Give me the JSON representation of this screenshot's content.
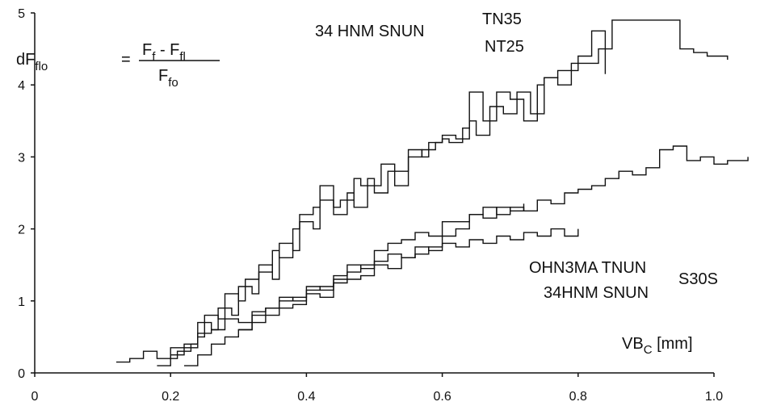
{
  "chart_data": {
    "type": "line",
    "xlim": [
      0,
      1.0
    ],
    "ylim": [
      0,
      5
    ],
    "x_ticks": [
      "0",
      "0.2",
      "0.4",
      "0.6",
      "0.8",
      "1.0"
    ],
    "y_ticks": [
      "0",
      "1",
      "2",
      "3",
      "4",
      "5"
    ],
    "grid": false,
    "xlabel": {
      "main": "VB",
      "sub": "C",
      "unit": " [mm]"
    },
    "formula": {
      "lhs_main": "dF",
      "lhs_sub": "flo",
      "equals": "=",
      "num_a": "F",
      "num_a_sub": "f",
      "minus": " - ",
      "num_b": "F",
      "num_b_sub": "fl",
      "den": "F",
      "den_sub": "fo"
    },
    "annotations": [
      {
        "text": "34 HNM SNUN",
        "sup": [
          "TN35",
          "NT25"
        ]
      },
      {
        "lines": [
          "OHN3MA TNUN",
          "34HNM SNUN"
        ],
        "sup": "S30S"
      }
    ],
    "series": [
      {
        "group": "upper",
        "points": [
          [
            0.18,
            0.1
          ],
          [
            0.2,
            0.25
          ],
          [
            0.22,
            0.35
          ],
          [
            0.24,
            0.5
          ],
          [
            0.25,
            0.8
          ],
          [
            0.27,
            0.75
          ],
          [
            0.28,
            1.1
          ],
          [
            0.3,
            1.0
          ],
          [
            0.31,
            1.3
          ],
          [
            0.33,
            1.4
          ],
          [
            0.35,
            1.7
          ],
          [
            0.36,
            1.6
          ],
          [
            0.38,
            2.0
          ],
          [
            0.39,
            2.2
          ],
          [
            0.41,
            2.3
          ],
          [
            0.42,
            2.6
          ],
          [
            0.44,
            2.3
          ],
          [
            0.45,
            2.4
          ],
          [
            0.47,
            2.7
          ],
          [
            0.48,
            2.6
          ],
          [
            0.5,
            2.6
          ],
          [
            0.51,
            2.9
          ],
          [
            0.53,
            2.8
          ],
          [
            0.55,
            3.1
          ],
          [
            0.57,
            3.0
          ],
          [
            0.58,
            3.2
          ],
          [
            0.6,
            3.25
          ],
          [
            0.61,
            3.2
          ],
          [
            0.63,
            3.4
          ],
          [
            0.64,
            3.9
          ],
          [
            0.66,
            3.5
          ],
          [
            0.68,
            3.9
          ],
          [
            0.7,
            3.8
          ],
          [
            0.72,
            3.5
          ],
          [
            0.74,
            4.0
          ],
          [
            0.75,
            4.1
          ],
          [
            0.77,
            4.2
          ],
          [
            0.79,
            4.3
          ],
          [
            0.81,
            4.3
          ],
          [
            0.83,
            4.5
          ],
          [
            0.85,
            4.9
          ],
          [
            0.87,
            4.9
          ],
          [
            0.89,
            4.9
          ],
          [
            0.91,
            4.9
          ],
          [
            0.93,
            4.9
          ],
          [
            0.95,
            4.5
          ],
          [
            0.97,
            4.45
          ],
          [
            0.99,
            4.4
          ],
          [
            1.02,
            4.35
          ]
        ]
      },
      {
        "group": "upper",
        "points": [
          [
            0.2,
            0.2
          ],
          [
            0.21,
            0.3
          ],
          [
            0.23,
            0.4
          ],
          [
            0.24,
            0.7
          ],
          [
            0.26,
            0.6
          ],
          [
            0.27,
            0.9
          ],
          [
            0.29,
            0.8
          ],
          [
            0.3,
            1.2
          ],
          [
            0.32,
            1.1
          ],
          [
            0.33,
            1.5
          ],
          [
            0.35,
            1.3
          ],
          [
            0.36,
            1.8
          ],
          [
            0.38,
            1.7
          ],
          [
            0.39,
            2.1
          ],
          [
            0.41,
            2.0
          ],
          [
            0.42,
            2.4
          ],
          [
            0.44,
            2.2
          ],
          [
            0.46,
            2.5
          ],
          [
            0.47,
            2.3
          ],
          [
            0.49,
            2.7
          ],
          [
            0.5,
            2.5
          ],
          [
            0.52,
            2.8
          ],
          [
            0.53,
            2.6
          ],
          [
            0.55,
            3.0
          ],
          [
            0.57,
            3.1
          ],
          [
            0.59,
            3.2
          ],
          [
            0.6,
            3.3
          ],
          [
            0.62,
            3.25
          ],
          [
            0.64,
            3.5
          ],
          [
            0.65,
            3.3
          ],
          [
            0.67,
            3.7
          ],
          [
            0.69,
            3.6
          ],
          [
            0.71,
            3.9
          ],
          [
            0.73,
            3.6
          ],
          [
            0.75,
            4.1
          ],
          [
            0.77,
            4.0
          ],
          [
            0.79,
            4.2
          ],
          [
            0.8,
            4.4
          ],
          [
            0.82,
            4.75
          ],
          [
            0.84,
            4.15
          ]
        ]
      },
      {
        "group": "lower",
        "points": [
          [
            0.12,
            0.15
          ],
          [
            0.14,
            0.2
          ],
          [
            0.16,
            0.3
          ],
          [
            0.18,
            0.2
          ],
          [
            0.2,
            0.35
          ],
          [
            0.22,
            0.4
          ],
          [
            0.24,
            0.55
          ],
          [
            0.26,
            0.6
          ],
          [
            0.28,
            0.75
          ],
          [
            0.3,
            0.7
          ],
          [
            0.32,
            0.85
          ],
          [
            0.34,
            0.9
          ],
          [
            0.36,
            1.0
          ],
          [
            0.38,
            1.05
          ],
          [
            0.4,
            1.15
          ],
          [
            0.42,
            1.2
          ],
          [
            0.44,
            1.3
          ],
          [
            0.46,
            1.4
          ],
          [
            0.48,
            1.5
          ],
          [
            0.5,
            1.55
          ],
          [
            0.52,
            1.65
          ],
          [
            0.54,
            1.6
          ],
          [
            0.56,
            1.75
          ],
          [
            0.58,
            1.7
          ],
          [
            0.6,
            1.8
          ],
          [
            0.62,
            1.75
          ],
          [
            0.64,
            1.85
          ],
          [
            0.66,
            1.8
          ],
          [
            0.68,
            1.9
          ],
          [
            0.7,
            1.85
          ],
          [
            0.72,
            1.95
          ],
          [
            0.74,
            1.9
          ],
          [
            0.76,
            2.0
          ],
          [
            0.78,
            1.9
          ],
          [
            0.8,
            2.0
          ]
        ]
      },
      {
        "group": "lower",
        "points": [
          [
            0.22,
            0.1
          ],
          [
            0.24,
            0.25
          ],
          [
            0.26,
            0.4
          ],
          [
            0.28,
            0.5
          ],
          [
            0.3,
            0.6
          ],
          [
            0.32,
            0.8
          ],
          [
            0.34,
            0.9
          ],
          [
            0.36,
            1.05
          ],
          [
            0.38,
            1.0
          ],
          [
            0.4,
            1.2
          ],
          [
            0.42,
            1.15
          ],
          [
            0.44,
            1.35
          ],
          [
            0.46,
            1.5
          ],
          [
            0.48,
            1.45
          ],
          [
            0.5,
            1.7
          ],
          [
            0.52,
            1.8
          ],
          [
            0.54,
            1.85
          ],
          [
            0.56,
            1.95
          ],
          [
            0.58,
            1.9
          ],
          [
            0.6,
            2.1
          ],
          [
            0.62,
            2.1
          ],
          [
            0.64,
            2.2
          ],
          [
            0.66,
            2.3
          ],
          [
            0.68,
            2.2
          ],
          [
            0.7,
            2.3
          ],
          [
            0.72,
            2.25
          ],
          [
            0.74,
            2.4
          ],
          [
            0.76,
            2.35
          ],
          [
            0.78,
            2.5
          ],
          [
            0.8,
            2.55
          ],
          [
            0.82,
            2.6
          ],
          [
            0.84,
            2.7
          ],
          [
            0.86,
            2.8
          ],
          [
            0.88,
            2.75
          ],
          [
            0.9,
            2.85
          ],
          [
            0.92,
            3.1
          ],
          [
            0.94,
            3.15
          ],
          [
            0.96,
            2.95
          ],
          [
            0.98,
            3.0
          ],
          [
            1.0,
            2.9
          ],
          [
            1.02,
            2.95
          ],
          [
            1.05,
            3.0
          ]
        ]
      },
      {
        "group": "lower",
        "points": [
          [
            0.3,
            0.6
          ],
          [
            0.32,
            0.7
          ],
          [
            0.34,
            0.8
          ],
          [
            0.36,
            0.9
          ],
          [
            0.38,
            0.95
          ],
          [
            0.4,
            1.1
          ],
          [
            0.42,
            1.05
          ],
          [
            0.44,
            1.25
          ],
          [
            0.46,
            1.3
          ],
          [
            0.48,
            1.35
          ],
          [
            0.5,
            1.5
          ],
          [
            0.52,
            1.45
          ],
          [
            0.54,
            1.6
          ],
          [
            0.56,
            1.65
          ],
          [
            0.58,
            1.75
          ],
          [
            0.6,
            1.9
          ],
          [
            0.62,
            2.0
          ],
          [
            0.64,
            2.2
          ],
          [
            0.66,
            2.15
          ],
          [
            0.68,
            2.3
          ],
          [
            0.7,
            2.25
          ],
          [
            0.72,
            2.35
          ]
        ]
      }
    ]
  }
}
